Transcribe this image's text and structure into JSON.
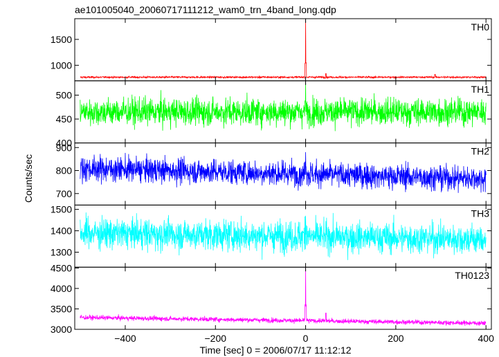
{
  "chart_data": {
    "type": "line",
    "title": "ae101005040_20060717111212_wam0_trn_4band_long.qdp",
    "xlabel": "Time [sec] 0 = 2006/07/17 11:12:12",
    "ylabel": "Counts/sec",
    "xlim": [
      -512,
      412
    ],
    "x_ticks": [
      -400,
      -200,
      0,
      200,
      400
    ],
    "x_tick_labels": [
      "−400",
      "−200",
      "0",
      "200",
      "400"
    ],
    "grid": false,
    "panels": [
      {
        "name": "TH0",
        "color": "#ff0000",
        "ylim": [
          700,
          1900
        ],
        "y_ticks": [
          1000,
          1500
        ],
        "y_tick_labels": [
          "1000",
          "1500"
        ],
        "baseline": 770,
        "noise": 12,
        "peak": {
          "x": 0,
          "y": 1890
        },
        "bumps": [
          {
            "x": 45,
            "y": 840
          },
          {
            "x": 287,
            "y": 825
          }
        ]
      },
      {
        "name": "TH1",
        "color": "#00ff00",
        "ylim": [
          400,
          530
        ],
        "y_ticks": [
          400,
          450,
          500
        ],
        "y_tick_labels": [
          "400",
          "450",
          "500"
        ],
        "baseline": 465,
        "noise": 20,
        "peak": {
          "x": 0,
          "y": 525
        },
        "bumps": []
      },
      {
        "name": "TH2",
        "color": "#0000ff",
        "ylim": [
          650,
          920
        ],
        "y_ticks": [
          700,
          800,
          900
        ],
        "y_tick_labels": [
          "700",
          "800",
          "900"
        ],
        "baseline": 810,
        "baseline_end": 765,
        "noise": 38,
        "peak": {
          "x": 0,
          "y": 880
        },
        "bumps": []
      },
      {
        "name": "TH3",
        "color": "#00ffff",
        "ylim": [
          1230,
          1520
        ],
        "y_ticks": [
          1300,
          1400,
          1500
        ],
        "y_tick_labels": [
          "1300",
          "1400",
          "1500"
        ],
        "baseline": 1390,
        "baseline_end": 1360,
        "noise": 50,
        "peak": {
          "x": 0,
          "y": 1470
        },
        "bumps": []
      },
      {
        "name": "TH0123",
        "color": "#ff00ff",
        "ylim": [
          3000,
          4520
        ],
        "y_ticks": [
          3000,
          3500,
          4000,
          4500
        ],
        "y_tick_labels": [
          "3000",
          "3500",
          "4000",
          "4500"
        ],
        "baseline": 3290,
        "baseline_end": 3150,
        "noise": 40,
        "peak": {
          "x": 0,
          "y": 4520
        },
        "bumps": [
          {
            "x": 45,
            "y": 3400
          }
        ]
      }
    ]
  }
}
